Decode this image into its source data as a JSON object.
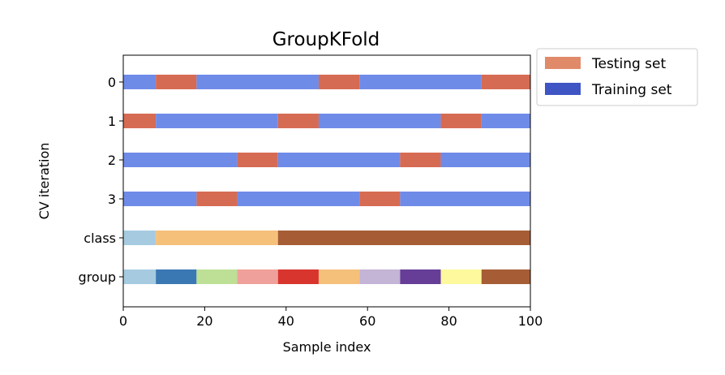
{
  "chart_data": {
    "type": "bar",
    "orientation": "horizontal",
    "title": "GroupKFold",
    "xlabel": "Sample index",
    "ylabel": "CV iteration",
    "xlim": [
      0,
      100
    ],
    "x_ticks": [
      0,
      20,
      40,
      60,
      80,
      100
    ],
    "grid": false,
    "legend_position": "outside-top-right",
    "legend": [
      {
        "name": "Testing set",
        "color": "#e08a6a"
      },
      {
        "name": "Training set",
        "color": "#3f55c4"
      }
    ],
    "train_color": "#6f8be8",
    "test_color": "#d66b53",
    "rows": [
      {
        "label": "0",
        "segments": [
          {
            "start": 0,
            "end": 8,
            "set": "train"
          },
          {
            "start": 8,
            "end": 18,
            "set": "test"
          },
          {
            "start": 18,
            "end": 48,
            "set": "train"
          },
          {
            "start": 48,
            "end": 58,
            "set": "test"
          },
          {
            "start": 58,
            "end": 88,
            "set": "train"
          },
          {
            "start": 88,
            "end": 100,
            "set": "test"
          }
        ]
      },
      {
        "label": "1",
        "segments": [
          {
            "start": 0,
            "end": 8,
            "set": "test"
          },
          {
            "start": 8,
            "end": 38,
            "set": "train"
          },
          {
            "start": 38,
            "end": 48,
            "set": "test"
          },
          {
            "start": 48,
            "end": 78,
            "set": "train"
          },
          {
            "start": 78,
            "end": 88,
            "set": "test"
          },
          {
            "start": 88,
            "end": 100,
            "set": "train"
          }
        ]
      },
      {
        "label": "2",
        "segments": [
          {
            "start": 0,
            "end": 28,
            "set": "train"
          },
          {
            "start": 28,
            "end": 38,
            "set": "test"
          },
          {
            "start": 38,
            "end": 68,
            "set": "train"
          },
          {
            "start": 68,
            "end": 78,
            "set": "test"
          },
          {
            "start": 78,
            "end": 100,
            "set": "train"
          }
        ]
      },
      {
        "label": "3",
        "segments": [
          {
            "start": 0,
            "end": 18,
            "set": "train"
          },
          {
            "start": 18,
            "end": 28,
            "set": "test"
          },
          {
            "start": 28,
            "end": 58,
            "set": "train"
          },
          {
            "start": 58,
            "end": 68,
            "set": "test"
          },
          {
            "start": 68,
            "end": 100,
            "set": "train"
          }
        ]
      },
      {
        "label": "class",
        "segments": [
          {
            "start": 0,
            "end": 8,
            "color": "#a6cbe0"
          },
          {
            "start": 8,
            "end": 38,
            "color": "#f5c07a"
          },
          {
            "start": 38,
            "end": 100,
            "color": "#a65d36"
          }
        ]
      },
      {
        "label": "group",
        "segments": [
          {
            "start": 0,
            "end": 8,
            "color": "#a6cbe0"
          },
          {
            "start": 8,
            "end": 18,
            "color": "#3a78b4"
          },
          {
            "start": 18,
            "end": 28,
            "color": "#bde096"
          },
          {
            "start": 28,
            "end": 38,
            "color": "#f0a09a"
          },
          {
            "start": 38,
            "end": 48,
            "color": "#d8352f"
          },
          {
            "start": 48,
            "end": 58,
            "color": "#f5c07a"
          },
          {
            "start": 58,
            "end": 68,
            "color": "#c4b4d6"
          },
          {
            "start": 68,
            "end": 78,
            "color": "#663e98"
          },
          {
            "start": 78,
            "end": 88,
            "color": "#fdf99c"
          },
          {
            "start": 88,
            "end": 100,
            "color": "#a65d36"
          }
        ]
      }
    ]
  }
}
